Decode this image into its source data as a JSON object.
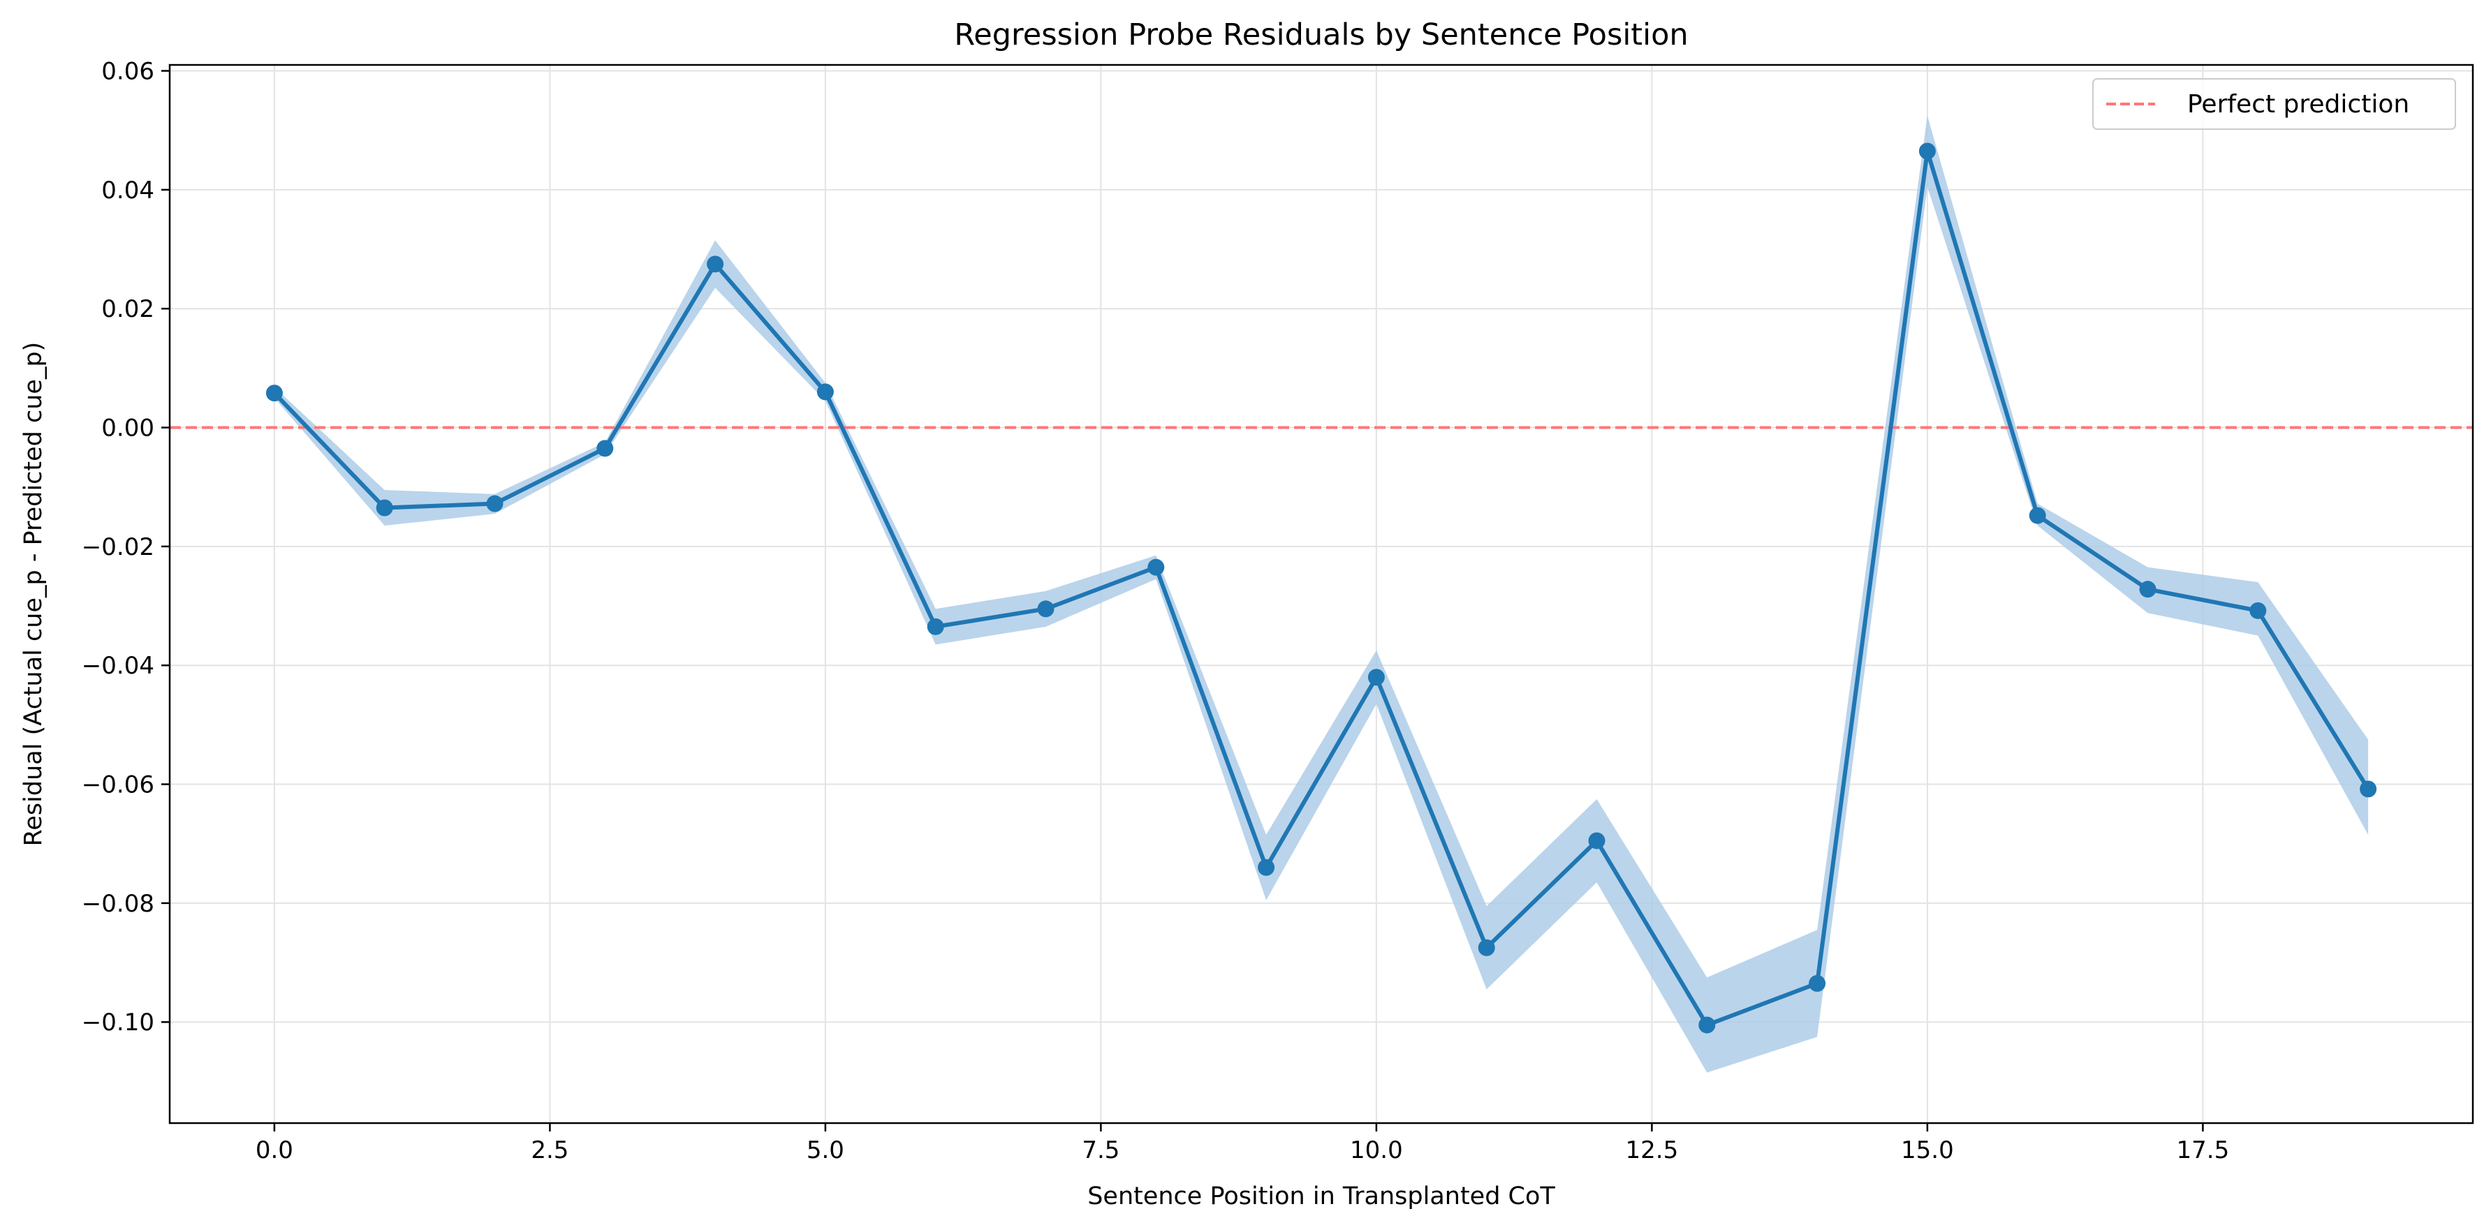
{
  "chart_data": {
    "type": "line",
    "title": "Regression Probe Residuals by Sentence Position",
    "xlabel": "Sentence Position in Transplanted CoT",
    "ylabel": "Residual (Actual cue_p - Predicted cue_p)",
    "xlim": [
      -0.95,
      19.95
    ],
    "ylim": [
      -0.117,
      0.061
    ],
    "xticks": [
      0.0,
      2.5,
      5.0,
      7.5,
      10.0,
      12.5,
      15.0,
      17.5
    ],
    "xtick_labels": [
      "0.0",
      "2.5",
      "5.0",
      "7.5",
      "10.0",
      "12.5",
      "15.0",
      "17.5"
    ],
    "yticks": [
      0.06,
      0.04,
      0.02,
      0.0,
      -0.02,
      -0.04,
      -0.06,
      -0.08,
      -0.1
    ],
    "ytick_labels": [
      "0.06",
      "0.04",
      "0.02",
      "0.00",
      "−0.02",
      "−0.04",
      "−0.06",
      "−0.08",
      "−0.10"
    ],
    "grid": true,
    "legend_position": "top-right",
    "x": [
      0,
      1,
      2,
      3,
      4,
      5,
      6,
      7,
      8,
      9,
      10,
      11,
      12,
      13,
      14,
      15,
      16,
      17,
      18,
      19
    ],
    "series": [
      {
        "values": [
          0.0058,
          -0.0135,
          -0.0128,
          -0.0035,
          0.0275,
          0.006,
          -0.0335,
          -0.0305,
          -0.0235,
          -0.074,
          -0.042,
          -0.0875,
          -0.0695,
          -0.1005,
          -0.0935,
          0.0465,
          -0.0148,
          -0.0272,
          -0.0308,
          -0.0608
        ],
        "lower": [
          0.005,
          -0.0165,
          -0.0145,
          -0.0045,
          0.0235,
          0.0045,
          -0.0365,
          -0.0335,
          -0.0255,
          -0.0795,
          -0.0465,
          -0.0945,
          -0.0765,
          -0.1085,
          -0.1025,
          0.0405,
          -0.0165,
          -0.0312,
          -0.035,
          -0.0685
        ],
        "upper": [
          0.0068,
          -0.0105,
          -0.0112,
          -0.0025,
          0.0315,
          0.0075,
          -0.0305,
          -0.0275,
          -0.0215,
          -0.0685,
          -0.0375,
          -0.0805,
          -0.0625,
          -0.0925,
          -0.0845,
          0.0525,
          -0.0128,
          -0.0235,
          -0.026,
          -0.0525
        ],
        "color": "#1f77b4",
        "band_color": "#a9c9e6"
      }
    ],
    "reference_line": {
      "y": 0.0,
      "label": "Perfect prediction",
      "color": "#ff7777",
      "style": "dashed"
    }
  }
}
